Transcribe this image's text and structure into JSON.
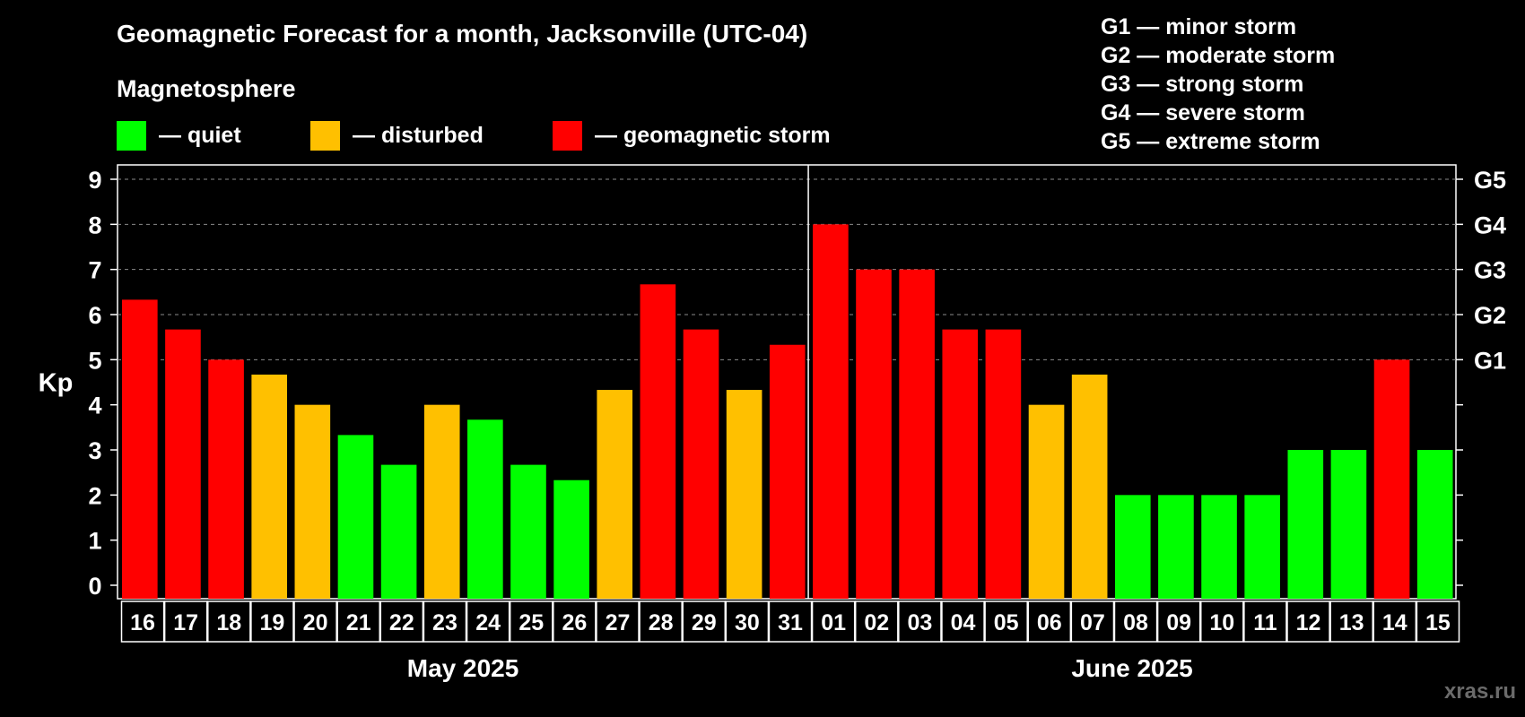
{
  "title": "Geomagnetic Forecast for a month, Jacksonville (UTC-04)",
  "subtitle": "Magnetosphere",
  "legend": [
    {
      "label": "— quiet",
      "color": "#00ff00"
    },
    {
      "label": "— disturbed",
      "color": "#ffc000"
    },
    {
      "label": "— geomagnetic storm",
      "color": "#ff0000"
    }
  ],
  "storm_scale": [
    "G1 — minor storm",
    "G2 — moderate storm",
    "G3 — strong storm",
    "G4 — severe storm",
    "G5 — extreme storm"
  ],
  "watermark": "xras.ru",
  "colors": {
    "quiet": "#00ff00",
    "disturbed": "#ffc000",
    "storm": "#ff0000"
  },
  "chart_data": {
    "type": "bar",
    "ylabel": "Kp",
    "ylim": [
      0,
      9
    ],
    "yticks": [
      "0",
      "1",
      "2",
      "3",
      "4",
      "5",
      "6",
      "7",
      "8",
      "9"
    ],
    "right_axis": [
      {
        "value": 5,
        "label": "G1"
      },
      {
        "value": 6,
        "label": "G2"
      },
      {
        "value": 7,
        "label": "G3"
      },
      {
        "value": 8,
        "label": "G4"
      },
      {
        "value": 9,
        "label": "G5"
      }
    ],
    "grid": "dashed horizontal at G-levels",
    "categories": [
      "16",
      "17",
      "18",
      "19",
      "20",
      "21",
      "22",
      "23",
      "24",
      "25",
      "26",
      "27",
      "28",
      "29",
      "30",
      "31",
      "01",
      "02",
      "03",
      "04",
      "05",
      "06",
      "07",
      "08",
      "09",
      "10",
      "11",
      "12",
      "13",
      "14",
      "15"
    ],
    "values": [
      6.33,
      5.67,
      5.0,
      4.67,
      4.0,
      3.33,
      2.67,
      4.0,
      3.67,
      2.67,
      2.33,
      4.33,
      6.67,
      5.67,
      4.33,
      5.33,
      8.0,
      7.0,
      7.0,
      5.67,
      5.67,
      4.0,
      4.67,
      2.0,
      2.0,
      2.0,
      2.0,
      3.0,
      3.0,
      5.0,
      3.0
    ],
    "levels": [
      "storm",
      "storm",
      "storm",
      "disturbed",
      "disturbed",
      "quiet",
      "quiet",
      "disturbed",
      "quiet",
      "quiet",
      "quiet",
      "disturbed",
      "storm",
      "storm",
      "disturbed",
      "storm",
      "storm",
      "storm",
      "storm",
      "storm",
      "storm",
      "disturbed",
      "disturbed",
      "quiet",
      "quiet",
      "quiet",
      "quiet",
      "quiet",
      "quiet",
      "storm",
      "quiet"
    ],
    "months": [
      {
        "label": "May 2025",
        "start": 0,
        "count": 16
      },
      {
        "label": "June 2025",
        "start": 16,
        "count": 15
      }
    ]
  }
}
